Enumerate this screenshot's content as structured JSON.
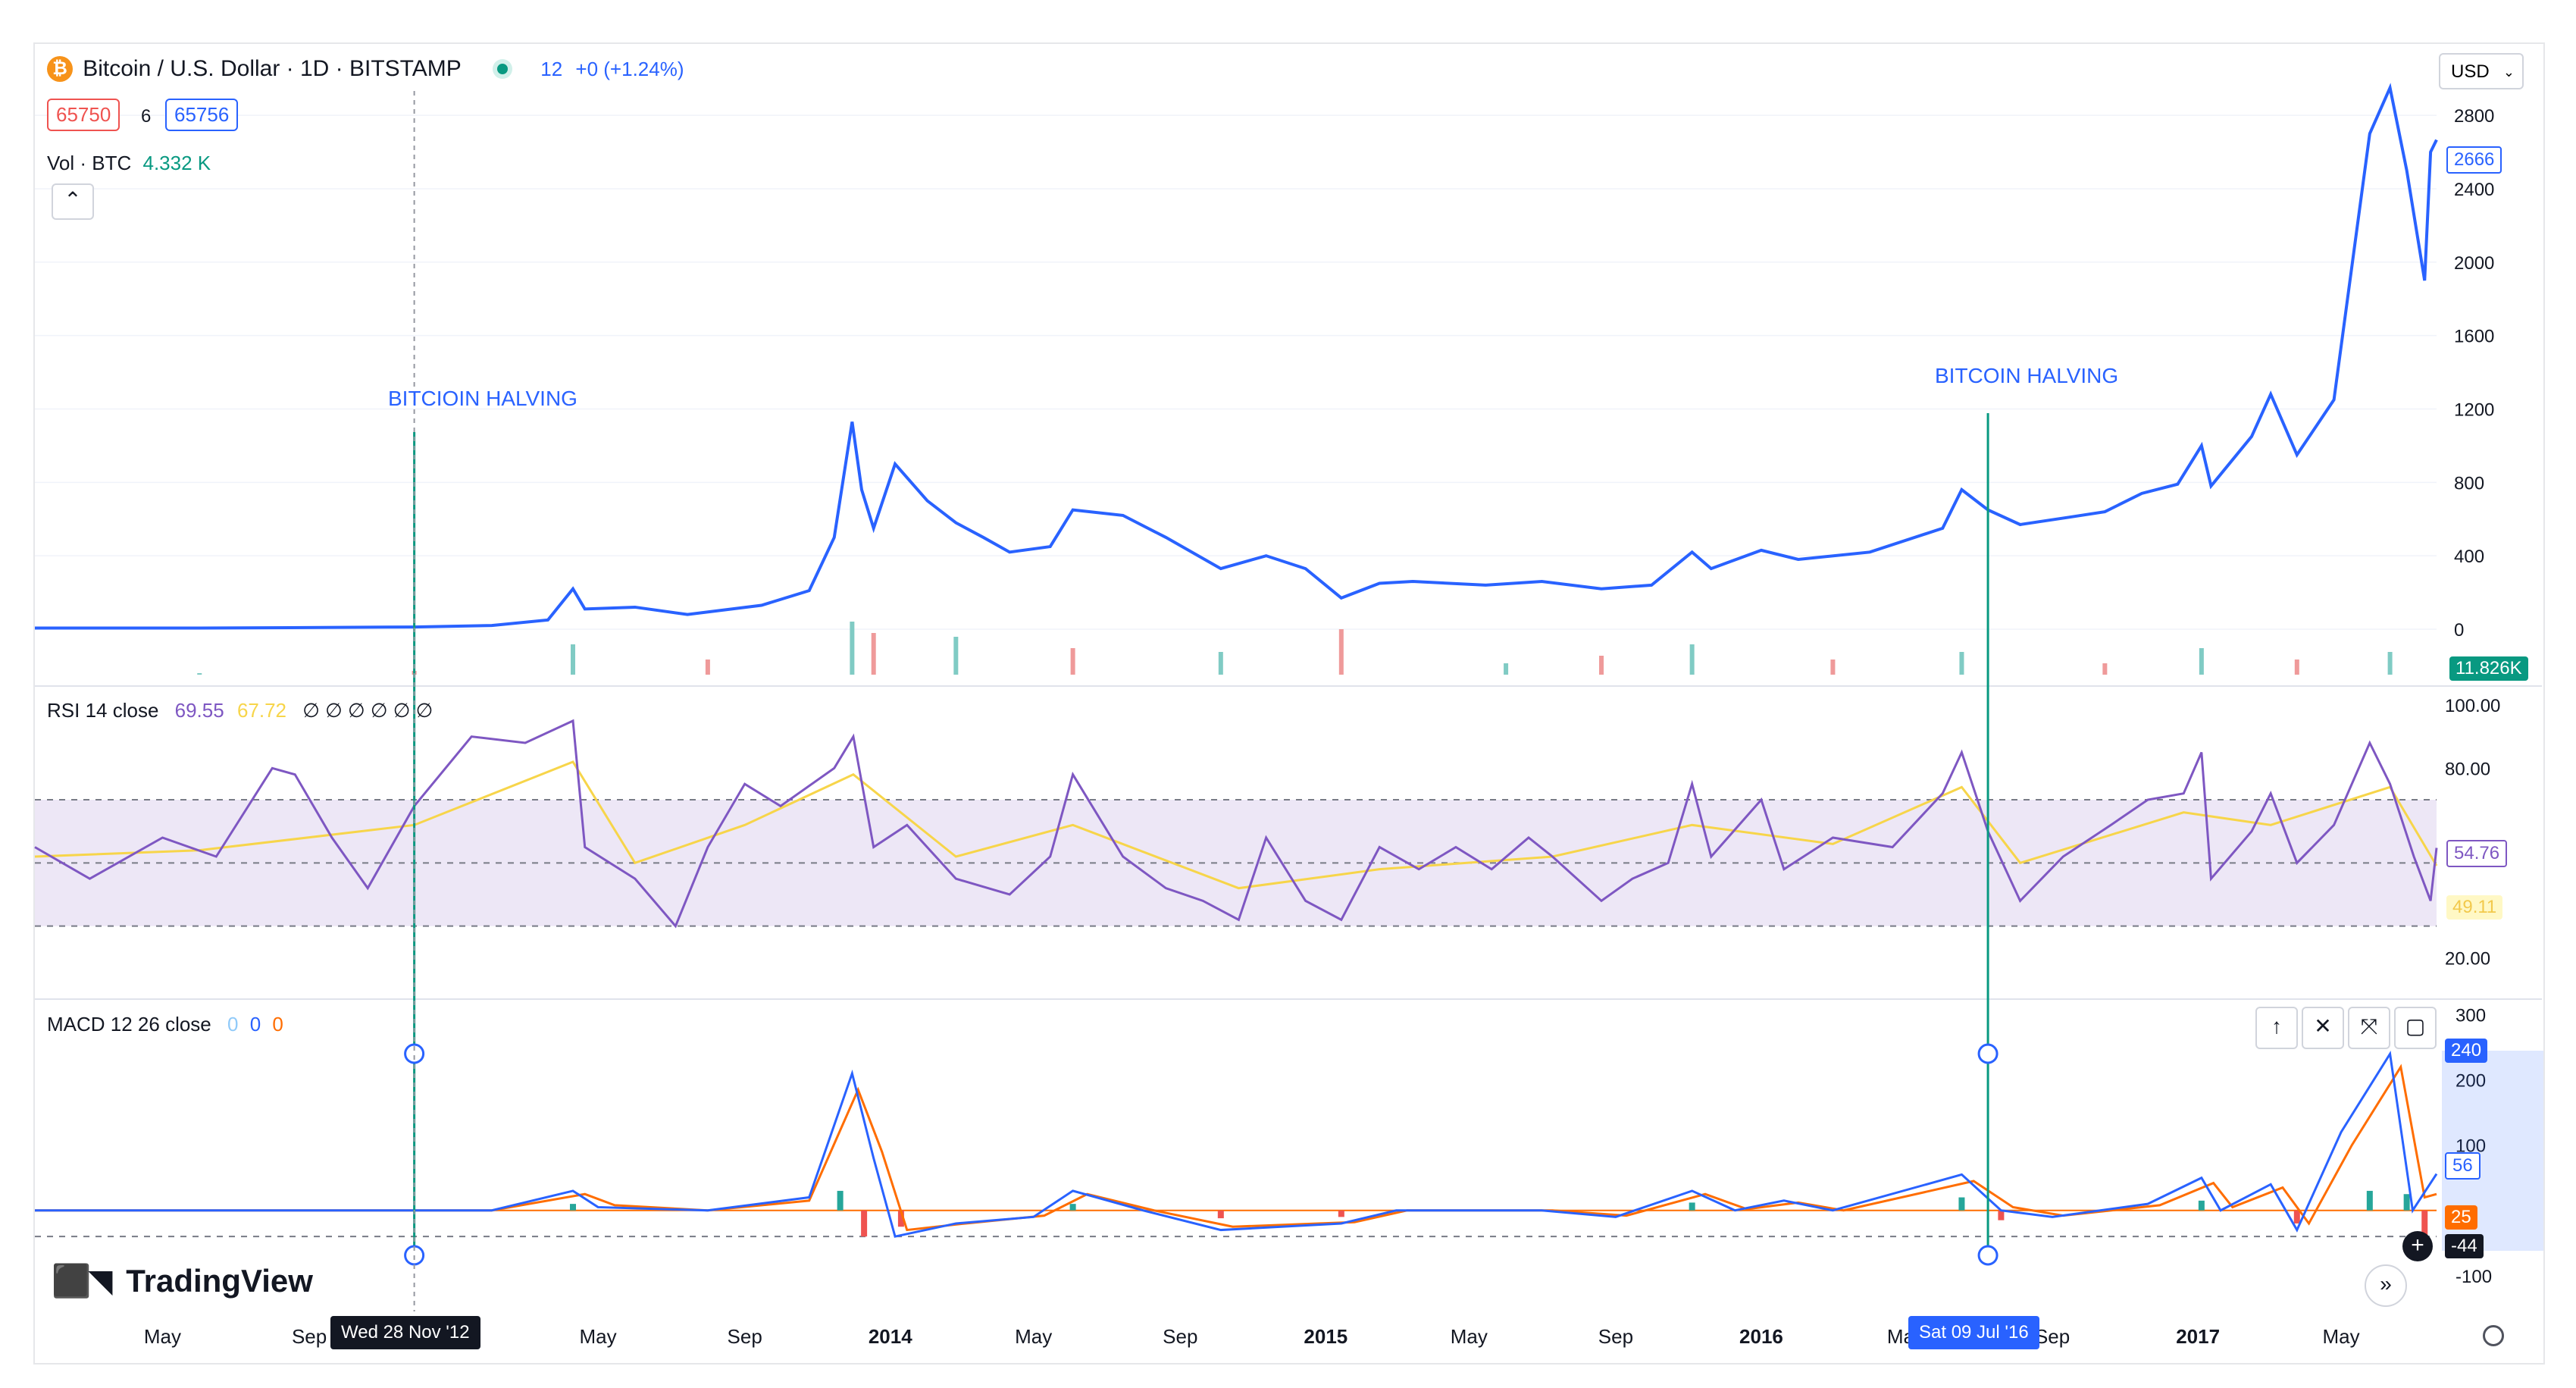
{
  "header": {
    "symbol_title": "Bitcoin / U.S. Dollar · 1D · BITSTAMP",
    "live_value": "12",
    "change": "+0 (+1.24%)",
    "bid": "65750",
    "spread": "6",
    "ask": "65756",
    "vol_label": "Vol · BTC",
    "vol_value": "4.332 K",
    "currency": "USD",
    "collapse_icon": "chevron-up-icon"
  },
  "annotations": [
    {
      "text": "BITCIOIN HALVING",
      "date": "2012-11-28"
    },
    {
      "text": "BITCOIN HALVING",
      "date": "2016-07-09"
    }
  ],
  "crosshair_labels": {
    "left": "Wed 28 Nov '12",
    "right": "Sat 09 Jul '16"
  },
  "price_axis_badges": {
    "price": "2666",
    "volume": "11.826K"
  },
  "rsi": {
    "title": "RSI 14 close",
    "value_a": "69.55",
    "value_b": "67.72",
    "placeholders": "∅ ∅ ∅ ∅ ∅ ∅",
    "badge_a": "54.76",
    "badge_b": "49.11"
  },
  "macd": {
    "title": "MACD 12 26 close",
    "v1": "0",
    "v2": "0",
    "v3": "0",
    "badge_top": "240",
    "badge_mid": "56",
    "badge_low": "25",
    "badge_neg": "-44"
  },
  "pane_buttons": [
    "↑",
    "✕",
    "⤧",
    "▢"
  ],
  "logo_text": "TradingView",
  "expand_icon": "»",
  "colors": {
    "price_line": "#2962ff",
    "halving_line": "#089981",
    "rsi_line": "#7e57c2",
    "rsi_ma": "#f7d54a",
    "rsi_band": "#ede7f6",
    "macd_line": "#2962ff",
    "signal_line": "#ff6d00",
    "hist_up": "#26a69a",
    "hist_down": "#ef5350"
  },
  "chart_data": [
    {
      "type": "line",
      "pane": "price",
      "title": "Bitcoin / U.S. Dollar · 1D · BITSTAMP",
      "x_axis_ticks": [
        "May",
        "Sep",
        "May",
        "Sep",
        "2014",
        "May",
        "Sep",
        "2015",
        "May",
        "Sep",
        "2016",
        "May",
        "Sep",
        "2017",
        "May"
      ],
      "x_tick_dates": [
        "2012-05-01",
        "2012-09-01",
        "2013-05-01",
        "2013-09-01",
        "2014-01-01",
        "2014-05-01",
        "2014-09-01",
        "2015-01-01",
        "2015-05-01",
        "2015-09-01",
        "2016-01-01",
        "2016-05-01",
        "2016-09-01",
        "2017-01-01",
        "2017-05-01"
      ],
      "xlim": [
        "2012-01-15",
        "2017-07-20"
      ],
      "y_ticks": [
        0,
        400,
        800,
        1200,
        1600,
        2000,
        2400,
        2800
      ],
      "ylim": [
        0,
        2850
      ],
      "series": [
        {
          "x": [
            "2012-01-15",
            "2012-06-01",
            "2012-11-28",
            "2013-02-01",
            "2013-03-20",
            "2013-04-10",
            "2013-04-20",
            "2013-06-01",
            "2013-07-15",
            "2013-09-15",
            "2013-10-25",
            "2013-11-15",
            "2013-11-30",
            "2013-12-08",
            "2013-12-18",
            "2014-01-05",
            "2014-02-01",
            "2014-02-25",
            "2014-03-20",
            "2014-04-11",
            "2014-05-15",
            "2014-06-03",
            "2014-07-15",
            "2014-08-20",
            "2014-10-05",
            "2014-11-12",
            "2014-12-15",
            "2015-01-14",
            "2015-02-15",
            "2015-03-15",
            "2015-05-15",
            "2015-07-01",
            "2015-08-20",
            "2015-10-01",
            "2015-11-04",
            "2015-11-20",
            "2016-01-01",
            "2016-02-01",
            "2016-04-01",
            "2016-06-01",
            "2016-06-17",
            "2016-07-09",
            "2016-08-05",
            "2016-09-15",
            "2016-10-15",
            "2016-11-15",
            "2016-12-15",
            "2017-01-04",
            "2017-01-12",
            "2017-02-15",
            "2017-03-03",
            "2017-03-25",
            "2017-04-25",
            "2017-05-25",
            "2017-06-11",
            "2017-06-25",
            "2017-07-10",
            "2017-07-15",
            "2017-07-20"
          ],
          "values": [
            6,
            6,
            12,
            20,
            50,
            220,
            110,
            120,
            80,
            130,
            210,
            500,
            1130,
            760,
            550,
            900,
            700,
            580,
            500,
            420,
            450,
            650,
            620,
            500,
            330,
            400,
            330,
            170,
            250,
            260,
            240,
            260,
            220,
            240,
            420,
            330,
            430,
            380,
            420,
            550,
            760,
            650,
            570,
            610,
            640,
            740,
            790,
            1000,
            780,
            1050,
            1280,
            950,
            1250,
            2700,
            2950,
            2500,
            1900,
            2600,
            2666
          ]
        }
      ],
      "volume": {
        "label": "Vol · BTC",
        "x": [
          "2012-06-01",
          "2012-11-28",
          "2013-04-10",
          "2013-08-01",
          "2013-11-30",
          "2013-12-18",
          "2014-02-25",
          "2014-06-03",
          "2014-10-05",
          "2015-01-14",
          "2015-06-01",
          "2015-08-20",
          "2015-11-04",
          "2016-03-01",
          "2016-06-17",
          "2016-10-15",
          "2017-01-04",
          "2017-03-25",
          "2017-06-11"
        ],
        "values": [
          2,
          5,
          40,
          20,
          70,
          55,
          50,
          35,
          30,
          60,
          15,
          25,
          40,
          20,
          30,
          15,
          35,
          20,
          30
        ]
      }
    },
    {
      "type": "line",
      "pane": "rsi",
      "title": "RSI 14 close",
      "y_ticks": [
        20,
        80,
        100
      ],
      "ylim": [
        10,
        100
      ],
      "band": [
        30,
        70
      ],
      "midline": 50,
      "series": [
        {
          "name": "RSI",
          "x": [
            "2012-01-15",
            "2012-03-01",
            "2012-05-01",
            "2012-06-15",
            "2012-08-01",
            "2012-08-20",
            "2012-09-20",
            "2012-10-20",
            "2012-11-28",
            "2013-01-15",
            "2013-03-01",
            "2013-04-10",
            "2013-04-20",
            "2013-06-01",
            "2013-07-05",
            "2013-08-01",
            "2013-09-01",
            "2013-10-01",
            "2013-11-15",
            "2013-12-01",
            "2013-12-18",
            "2014-01-15",
            "2014-02-25",
            "2014-04-11",
            "2014-05-15",
            "2014-06-03",
            "2014-07-15",
            "2014-08-20",
            "2014-09-20",
            "2014-10-20",
            "2014-11-12",
            "2014-12-15",
            "2015-01-14",
            "2015-02-15",
            "2015-03-20",
            "2015-04-20",
            "2015-05-20",
            "2015-06-20",
            "2015-07-10",
            "2015-08-20",
            "2015-09-15",
            "2015-10-15",
            "2015-11-04",
            "2015-11-20",
            "2016-01-01",
            "2016-01-20",
            "2016-03-01",
            "2016-04-20",
            "2016-06-01",
            "2016-06-17",
            "2016-07-09",
            "2016-08-05",
            "2016-09-10",
            "2016-10-20",
            "2016-11-20",
            "2016-12-20",
            "2017-01-04",
            "2017-01-12",
            "2017-02-15",
            "2017-03-03",
            "2017-03-25",
            "2017-04-25",
            "2017-05-25",
            "2017-06-11",
            "2017-07-01",
            "2017-07-15",
            "2017-07-20"
          ],
          "values": [
            55,
            45,
            58,
            52,
            80,
            78,
            58,
            42,
            68,
            90,
            88,
            95,
            55,
            45,
            30,
            55,
            75,
            68,
            80,
            90,
            55,
            62,
            45,
            40,
            52,
            78,
            52,
            42,
            38,
            32,
            58,
            38,
            32,
            55,
            48,
            55,
            48,
            58,
            52,
            38,
            45,
            50,
            75,
            52,
            70,
            48,
            58,
            55,
            72,
            85,
            60,
            38,
            52,
            62,
            70,
            72,
            85,
            45,
            60,
            72,
            50,
            62,
            88,
            75,
            52,
            38,
            54.76
          ]
        },
        {
          "name": "RSI MA",
          "x": [
            "2012-01-15",
            "2012-06-01",
            "2012-11-28",
            "2013-04-10",
            "2013-06-01",
            "2013-09-01",
            "2013-12-01",
            "2014-02-25",
            "2014-06-03",
            "2014-10-20",
            "2015-02-15",
            "2015-07-10",
            "2015-11-04",
            "2016-03-01",
            "2016-06-17",
            "2016-08-05",
            "2016-12-20",
            "2017-03-03",
            "2017-06-11",
            "2017-07-20"
          ],
          "values": [
            52,
            54,
            62,
            82,
            50,
            62,
            78,
            52,
            62,
            42,
            48,
            52,
            62,
            56,
            74,
            50,
            66,
            62,
            74,
            49.11
          ]
        }
      ]
    },
    {
      "type": "line",
      "pane": "macd",
      "title": "MACD 12 26 close",
      "y_ticks": [
        -100,
        100,
        200,
        300
      ],
      "ylim": [
        -120,
        310
      ],
      "series": [
        {
          "name": "MACD",
          "x": [
            "2012-01-15",
            "2013-02-01",
            "2013-04-10",
            "2013-05-01",
            "2013-08-01",
            "2013-10-25",
            "2013-11-30",
            "2013-12-18",
            "2014-01-05",
            "2014-02-25",
            "2014-05-01",
            "2014-06-03",
            "2014-08-01",
            "2014-10-05",
            "2015-01-14",
            "2015-03-01",
            "2015-07-01",
            "2015-09-01",
            "2015-11-04",
            "2015-12-10",
            "2016-01-20",
            "2016-03-01",
            "2016-06-17",
            "2016-07-20",
            "2016-09-01",
            "2016-11-20",
            "2017-01-04",
            "2017-01-20",
            "2017-03-03",
            "2017-03-25",
            "2017-05-01",
            "2017-06-11",
            "2017-06-30",
            "2017-07-20"
          ],
          "values": [
            0,
            0,
            30,
            5,
            0,
            20,
            210,
            80,
            -40,
            -20,
            -10,
            30,
            0,
            -30,
            -20,
            0,
            0,
            -10,
            30,
            0,
            15,
            0,
            55,
            0,
            -10,
            10,
            50,
            0,
            40,
            -30,
            120,
            240,
            0,
            56
          ]
        },
        {
          "name": "Signal",
          "x": [
            "2012-01-15",
            "2013-02-01",
            "2013-04-20",
            "2013-05-15",
            "2013-08-01",
            "2013-10-25",
            "2013-12-05",
            "2013-12-25",
            "2014-01-15",
            "2014-03-05",
            "2014-05-10",
            "2014-06-15",
            "2014-08-10",
            "2014-10-15",
            "2015-01-25",
            "2015-03-10",
            "2015-07-10",
            "2015-09-10",
            "2015-11-15",
            "2015-12-20",
            "2016-02-01",
            "2016-03-10",
            "2016-06-27",
            "2016-07-30",
            "2016-09-10",
            "2016-11-30",
            "2017-01-14",
            "2017-01-30",
            "2017-03-13",
            "2017-04-04",
            "2017-05-10",
            "2017-06-20",
            "2017-07-10",
            "2017-07-20"
          ],
          "values": [
            0,
            0,
            25,
            8,
            0,
            15,
            185,
            90,
            -30,
            -20,
            -8,
            25,
            0,
            -25,
            -18,
            0,
            0,
            -8,
            25,
            2,
            12,
            0,
            45,
            5,
            -8,
            8,
            42,
            5,
            35,
            -20,
            100,
            220,
            20,
            25
          ]
        }
      ],
      "histogram": {
        "x": [
          "2013-04-10",
          "2013-11-20",
          "2013-12-10",
          "2014-01-10",
          "2014-06-03",
          "2014-10-05",
          "2015-01-14",
          "2015-11-04",
          "2016-06-17",
          "2016-07-20",
          "2017-01-04",
          "2017-03-25",
          "2017-05-25",
          "2017-06-25",
          "2017-07-10"
        ],
        "values": [
          10,
          30,
          -40,
          -25,
          10,
          -12,
          -10,
          12,
          20,
          -15,
          15,
          -20,
          30,
          25,
          -44
        ]
      }
    }
  ]
}
